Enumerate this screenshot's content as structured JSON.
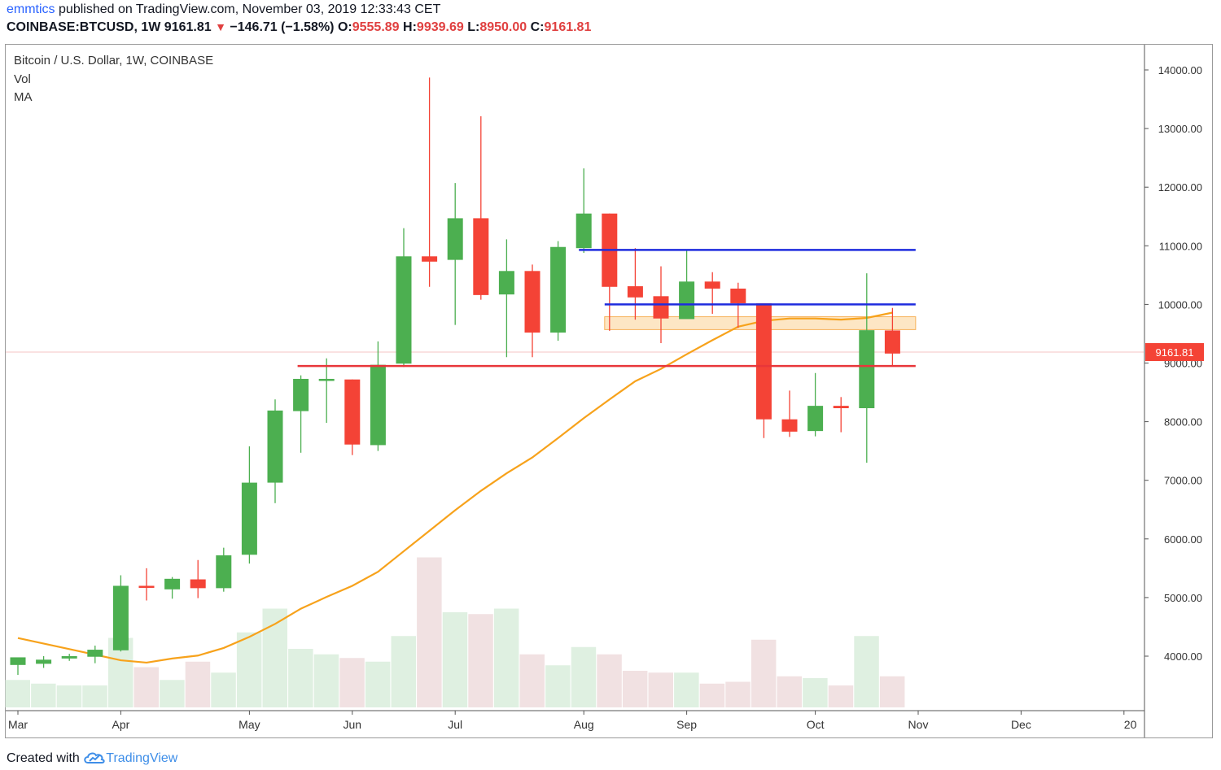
{
  "header": {
    "publisher": "emmtics",
    "published_text": "published on TradingView.com, November 03, 2019 12:33:43 CET",
    "symbol": "COINBASE:BTCUSD, 1W",
    "last": "9161.81",
    "change": "−146.71 (−1.58%)",
    "o_label": "O:",
    "o_value": "9555.89",
    "h_label": "H:",
    "h_value": "9939.69",
    "l_label": "L:",
    "l_value": "8950.00",
    "c_label": "C:",
    "c_value": "9161.81"
  },
  "legend": {
    "title": "Bitcoin / U.S. Dollar, 1W, COINBASE",
    "vol": "Vol",
    "ma": "MA"
  },
  "footer": {
    "created_with": "Created with",
    "brand": "TradingView"
  },
  "colors": {
    "up": "#4caf50",
    "down": "#f44336",
    "vol_up": "#dff0e1",
    "vol_down": "#f1e1e2",
    "ma": "#f7a21b",
    "blue_line": "#1e2cde",
    "red_line": "#e8363a",
    "zone_fill": "#fde6c4",
    "zone_border": "#f7b25a",
    "price_tag": "#f44336"
  },
  "chart_data": {
    "type": "candlestick",
    "x_labels": [
      {
        "label": "Mar",
        "week": 0
      },
      {
        "label": "Apr",
        "week": 4
      },
      {
        "label": "May",
        "week": 9
      },
      {
        "label": "Jun",
        "week": 13
      },
      {
        "label": "Jul",
        "week": 17
      },
      {
        "label": "Aug",
        "week": 22
      },
      {
        "label": "Sep",
        "week": 26
      },
      {
        "label": "Oct",
        "week": 31
      },
      {
        "label": "Nov",
        "week": 35
      },
      {
        "label": "Dec",
        "week": 39
      },
      {
        "label": "20",
        "week": 43
      }
    ],
    "y_ticks": [
      "4000.00",
      "5000.00",
      "6000.00",
      "7000.00",
      "8000.00",
      "9000.00",
      "10000.00",
      "11000.00",
      "12000.00",
      "13000.00",
      "14000.00"
    ],
    "ylim": [
      3300,
      14300
    ],
    "last_price": "9161.81",
    "candles": [
      {
        "o": 3850,
        "h": 3950,
        "l": 3680,
        "c": 3980
      },
      {
        "o": 3870,
        "h": 4000,
        "l": 3800,
        "c": 3940
      },
      {
        "o": 3960,
        "h": 4040,
        "l": 3920,
        "c": 4000
      },
      {
        "o": 3990,
        "h": 4180,
        "l": 3880,
        "c": 4110
      },
      {
        "o": 4100,
        "h": 5380,
        "l": 4080,
        "c": 5200
      },
      {
        "o": 5200,
        "h": 5500,
        "l": 4950,
        "c": 5170
      },
      {
        "o": 5140,
        "h": 5350,
        "l": 4980,
        "c": 5320
      },
      {
        "o": 5310,
        "h": 5640,
        "l": 4990,
        "c": 5160
      },
      {
        "o": 5160,
        "h": 5850,
        "l": 5100,
        "c": 5720
      },
      {
        "o": 5730,
        "h": 7580,
        "l": 5580,
        "c": 6960
      },
      {
        "o": 6960,
        "h": 8380,
        "l": 6610,
        "c": 8190
      },
      {
        "o": 8180,
        "h": 8790,
        "l": 7470,
        "c": 8730
      },
      {
        "o": 8720,
        "h": 9080,
        "l": 7980,
        "c": 8730
      },
      {
        "o": 8720,
        "h": 8720,
        "l": 7430,
        "c": 7610
      },
      {
        "o": 7600,
        "h": 9370,
        "l": 7500,
        "c": 8970
      },
      {
        "o": 8990,
        "h": 11300,
        "l": 8930,
        "c": 10820
      },
      {
        "o": 10820,
        "h": 13870,
        "l": 10300,
        "c": 10730
      },
      {
        "o": 10760,
        "h": 12070,
        "l": 9650,
        "c": 11470
      },
      {
        "o": 11470,
        "h": 13210,
        "l": 10080,
        "c": 10160
      },
      {
        "o": 10170,
        "h": 11110,
        "l": 9100,
        "c": 10570
      },
      {
        "o": 10570,
        "h": 10680,
        "l": 9100,
        "c": 9520
      },
      {
        "o": 9520,
        "h": 11080,
        "l": 9380,
        "c": 10980
      },
      {
        "o": 10960,
        "h": 12320,
        "l": 10880,
        "c": 11550
      },
      {
        "o": 11550,
        "h": 11550,
        "l": 9550,
        "c": 10300
      },
      {
        "o": 10310,
        "h": 10960,
        "l": 9740,
        "c": 10120
      },
      {
        "o": 10140,
        "h": 10650,
        "l": 9340,
        "c": 9760
      },
      {
        "o": 9750,
        "h": 10920,
        "l": 9760,
        "c": 10390
      },
      {
        "o": 10390,
        "h": 10550,
        "l": 9840,
        "c": 10270
      },
      {
        "o": 10270,
        "h": 10370,
        "l": 9600,
        "c": 10020
      },
      {
        "o": 10020,
        "h": 10020,
        "l": 7720,
        "c": 8040
      },
      {
        "o": 8040,
        "h": 8530,
        "l": 7740,
        "c": 7830
      },
      {
        "o": 7840,
        "h": 8830,
        "l": 7750,
        "c": 8270
      },
      {
        "o": 8270,
        "h": 8420,
        "l": 7820,
        "c": 8230
      },
      {
        "o": 8230,
        "h": 10530,
        "l": 7300,
        "c": 9560
      },
      {
        "o": 9556,
        "h": 9940,
        "l": 8950,
        "c": 9162
      }
    ],
    "volume_scale": {
      "name": "Vol",
      "display_range": [
        0,
        1
      ]
    },
    "volume": [
      0.15,
      0.13,
      0.12,
      0.12,
      0.38,
      0.22,
      0.15,
      0.25,
      0.19,
      0.41,
      0.54,
      0.32,
      0.29,
      0.27,
      0.25,
      0.39,
      0.82,
      0.52,
      0.51,
      0.54,
      0.29,
      0.23,
      0.33,
      0.29,
      0.2,
      0.19,
      0.19,
      0.13,
      0.14,
      0.37,
      0.17,
      0.16,
      0.12,
      0.39,
      0.17
    ],
    "ma_line": [
      {
        "week": 0,
        "v": 4310
      },
      {
        "week": 2,
        "v": 4120
      },
      {
        "week": 4,
        "v": 3930
      },
      {
        "week": 5,
        "v": 3890
      },
      {
        "week": 6,
        "v": 3960
      },
      {
        "week": 7,
        "v": 4010
      },
      {
        "week": 8,
        "v": 4140
      },
      {
        "week": 9,
        "v": 4330
      },
      {
        "week": 10,
        "v": 4550
      },
      {
        "week": 11,
        "v": 4810
      },
      {
        "week": 12,
        "v": 5010
      },
      {
        "week": 13,
        "v": 5200
      },
      {
        "week": 14,
        "v": 5440
      },
      {
        "week": 15,
        "v": 5790
      },
      {
        "week": 16,
        "v": 6140
      },
      {
        "week": 17,
        "v": 6490
      },
      {
        "week": 18,
        "v": 6820
      },
      {
        "week": 19,
        "v": 7120
      },
      {
        "week": 20,
        "v": 7390
      },
      {
        "week": 21,
        "v": 7720
      },
      {
        "week": 22,
        "v": 8060
      },
      {
        "week": 23,
        "v": 8380
      },
      {
        "week": 24,
        "v": 8690
      },
      {
        "week": 25,
        "v": 8900
      },
      {
        "week": 26,
        "v": 9150
      },
      {
        "week": 27,
        "v": 9390
      },
      {
        "week": 28,
        "v": 9620
      },
      {
        "week": 29,
        "v": 9720
      },
      {
        "week": 30,
        "v": 9760
      },
      {
        "week": 31,
        "v": 9760
      },
      {
        "week": 32,
        "v": 9740
      },
      {
        "week": 33,
        "v": 9770
      },
      {
        "week": 34,
        "v": 9860
      }
    ],
    "annotations": {
      "blue_lines": [
        {
          "from_week": 22,
          "to_week": 34.9,
          "y": 10930
        },
        {
          "from_week": 23,
          "to_week": 34.9,
          "y": 10000
        }
      ],
      "red_line": {
        "from_week": 11,
        "to_week": 34.9,
        "y": 8950
      },
      "zone": {
        "from_week": 23,
        "to_week": 34.9,
        "y_low": 9570,
        "y_high": 9790
      }
    }
  }
}
